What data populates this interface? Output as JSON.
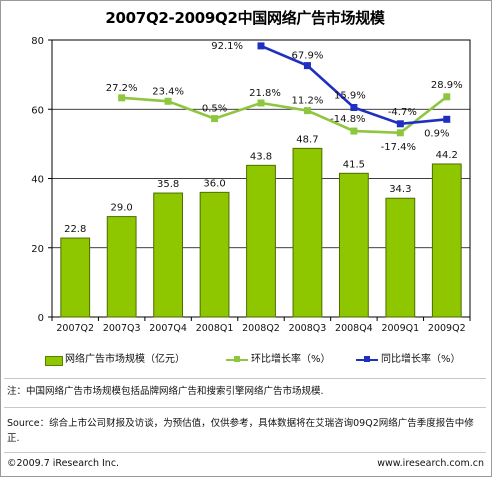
{
  "title": "2007Q2-2009Q2中国网络广告市场规模",
  "legend": {
    "bar_label": "网络广告市场规模（亿元）",
    "qoq_label": "环比增长率（%）",
    "yoy_label": "同比增长率（%）"
  },
  "note": "注：中国网络广告市场规模包括品牌网络广告和搜索引擎网络广告市场规模.",
  "source": "Source：综合上市公司财报及访谈，为预估值，仅供参考，具体数据将在艾瑞咨询09Q2网络广告季度报告中修正.",
  "copyright": "©2009.7 iResearch Inc.",
  "website": "www.iresearch.com.cn",
  "chart_data": {
    "type": "bar",
    "title": "2007Q2-2009Q2中国网络广告市场规模",
    "categories": [
      "2007Q2",
      "2007Q3",
      "2007Q4",
      "2008Q1",
      "2008Q2",
      "2008Q3",
      "2008Q4",
      "2009Q1",
      "2009Q2"
    ],
    "ylim": [
      0,
      80
    ],
    "yticks": [
      0,
      20,
      40,
      60,
      80
    ],
    "grid": true,
    "legend_position": "bottom",
    "series": [
      {
        "name": "网络广告市场规模（亿元）",
        "kind": "bar",
        "color": "#8ec600",
        "values": [
          22.8,
          29.0,
          35.8,
          36.0,
          43.8,
          48.7,
          41.5,
          34.3,
          44.2
        ],
        "labels": [
          "22.8",
          "29.0",
          "35.8",
          "36.0",
          "43.8",
          "48.7",
          "41.5",
          "34.3",
          "44.2"
        ]
      },
      {
        "name": "环比增长率（%）",
        "kind": "line",
        "color": "#8ec63f",
        "marker": "square",
        "values": [
          null,
          27.2,
          23.4,
          0.5,
          21.8,
          11.2,
          -14.8,
          -17.4,
          28.9
        ],
        "labels": [
          null,
          "27.2%",
          "23.4%",
          "0.5%",
          "21.8%",
          "11.2%",
          "-14.8%",
          "-17.4%",
          "28.9%"
        ],
        "plotted_y": [
          null,
          63.3,
          62.3,
          57.3,
          61.8,
          59.6,
          53.7,
          53.2,
          63.6
        ]
      },
      {
        "name": "同比增长率（%）",
        "kind": "line",
        "color": "#1f2fbf",
        "marker": "square",
        "values": [
          null,
          null,
          null,
          null,
          92.1,
          67.9,
          15.9,
          -4.7,
          0.9
        ],
        "labels": [
          null,
          null,
          null,
          null,
          "92.1%",
          "67.9%",
          "15.9%",
          "-4.7%",
          "0.9%"
        ],
        "plotted_y": [
          null,
          null,
          null,
          null,
          78.3,
          72.6,
          60.5,
          55.8,
          57.1
        ]
      }
    ]
  }
}
